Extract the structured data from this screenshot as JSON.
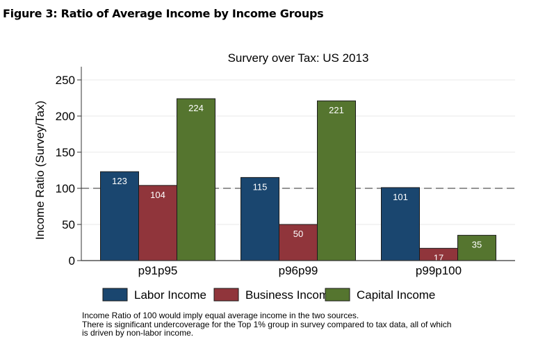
{
  "figure_title": "Figure 3: Ratio of Average Income by Income Groups",
  "notes": [
    "Income Ratio of 100 would imply equal average income in the two sources.",
    "There is significant undercoverage for the Top 1% group in survey compared to tax data, all of which",
    "is driven by non-labor income."
  ],
  "chart_data": {
    "type": "bar",
    "title": "Survery over Tax: US 2013",
    "xlabel": "",
    "ylabel": "Income Ratio (Survey/Tax)",
    "ylim": [
      0,
      260
    ],
    "yticks": [
      0,
      50,
      100,
      150,
      200,
      250
    ],
    "grid": true,
    "reference_line": {
      "y": 100,
      "style": "dashed"
    },
    "categories": [
      "p91p95",
      "p96p99",
      "p99p100"
    ],
    "series": [
      {
        "name": "Labor Income",
        "color": "#1a466f",
        "values": [
          123,
          115,
          101
        ]
      },
      {
        "name": "Business Income",
        "color": "#90353b",
        "values": [
          104,
          50,
          17
        ]
      },
      {
        "name": "Capital Income",
        "color": "#55752f",
        "values": [
          224,
          221,
          35
        ]
      }
    ],
    "legend_position": "bottom"
  }
}
